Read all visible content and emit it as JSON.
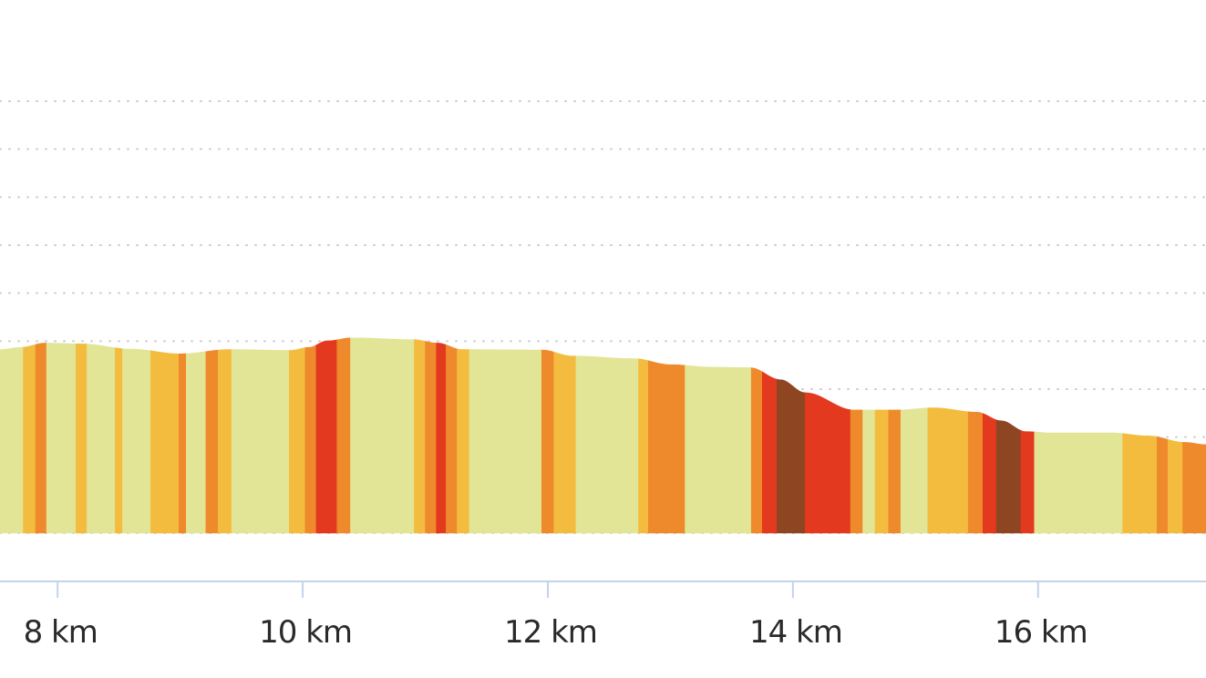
{
  "chart_data": {
    "type": "area",
    "title": "",
    "xlabel": "",
    "ylabel": "",
    "x_unit": "km",
    "xlim": [
      7.53,
      17.37
    ],
    "ylim": [
      0,
      100
    ],
    "grid": true,
    "x_ticks": [
      {
        "value": 8,
        "label": "8 km"
      },
      {
        "value": 10,
        "label": "10 km"
      },
      {
        "value": 12,
        "label": "12 km"
      },
      {
        "value": 14,
        "label": "14 km"
      },
      {
        "value": 16,
        "label": "16 km"
      }
    ],
    "grade_colors": {
      "flat": "#e2e596",
      "gentle": "#f3bc3f",
      "moderate": "#ef8a2c",
      "steep": "#e3391e",
      "very_steep": "#8e4522"
    },
    "profile": [
      {
        "x": 7.53,
        "y": 42.5
      },
      {
        "x": 7.7,
        "y": 43.0
      },
      {
        "x": 7.9,
        "y": 44.0
      },
      {
        "x": 8.2,
        "y": 43.8
      },
      {
        "x": 8.6,
        "y": 42.6
      },
      {
        "x": 9.0,
        "y": 41.5
      },
      {
        "x": 9.4,
        "y": 42.5
      },
      {
        "x": 9.9,
        "y": 42.3
      },
      {
        "x": 10.05,
        "y": 43.0
      },
      {
        "x": 10.2,
        "y": 44.5
      },
      {
        "x": 10.4,
        "y": 45.2
      },
      {
        "x": 10.9,
        "y": 44.8
      },
      {
        "x": 11.1,
        "y": 44.0
      },
      {
        "x": 11.3,
        "y": 42.5
      },
      {
        "x": 11.95,
        "y": 42.4
      },
      {
        "x": 12.2,
        "y": 41.0
      },
      {
        "x": 12.7,
        "y": 40.4
      },
      {
        "x": 13.0,
        "y": 39.0
      },
      {
        "x": 13.35,
        "y": 38.4
      },
      {
        "x": 13.65,
        "y": 38.3
      },
      {
        "x": 13.9,
        "y": 35.5
      },
      {
        "x": 14.1,
        "y": 32.5
      },
      {
        "x": 14.5,
        "y": 28.5
      },
      {
        "x": 14.85,
        "y": 28.5
      },
      {
        "x": 15.15,
        "y": 29.0
      },
      {
        "x": 15.5,
        "y": 28.0
      },
      {
        "x": 15.7,
        "y": 26.0
      },
      {
        "x": 15.9,
        "y": 23.5
      },
      {
        "x": 16.1,
        "y": 23.2
      },
      {
        "x": 16.6,
        "y": 23.2
      },
      {
        "x": 16.9,
        "y": 22.5
      },
      {
        "x": 17.2,
        "y": 21.0
      },
      {
        "x": 17.37,
        "y": 20.5
      }
    ],
    "segments": [
      {
        "x0": 7.53,
        "x1": 7.72,
        "grade": "flat"
      },
      {
        "x0": 7.72,
        "x1": 7.82,
        "grade": "gentle"
      },
      {
        "x0": 7.82,
        "x1": 7.91,
        "grade": "moderate"
      },
      {
        "x0": 7.91,
        "x1": 8.15,
        "grade": "flat"
      },
      {
        "x0": 8.15,
        "x1": 8.24,
        "grade": "gentle"
      },
      {
        "x0": 8.24,
        "x1": 8.47,
        "grade": "flat"
      },
      {
        "x0": 8.47,
        "x1": 8.53,
        "grade": "gentle"
      },
      {
        "x0": 8.53,
        "x1": 8.76,
        "grade": "flat"
      },
      {
        "x0": 8.76,
        "x1": 8.99,
        "grade": "gentle"
      },
      {
        "x0": 8.99,
        "x1": 9.05,
        "grade": "moderate"
      },
      {
        "x0": 9.05,
        "x1": 9.21,
        "grade": "flat"
      },
      {
        "x0": 9.21,
        "x1": 9.31,
        "grade": "moderate"
      },
      {
        "x0": 9.31,
        "x1": 9.42,
        "grade": "gentle"
      },
      {
        "x0": 9.42,
        "x1": 9.89,
        "grade": "flat"
      },
      {
        "x0": 9.89,
        "x1": 10.02,
        "grade": "gentle"
      },
      {
        "x0": 10.02,
        "x1": 10.11,
        "grade": "moderate"
      },
      {
        "x0": 10.11,
        "x1": 10.28,
        "grade": "steep"
      },
      {
        "x0": 10.28,
        "x1": 10.39,
        "grade": "moderate"
      },
      {
        "x0": 10.39,
        "x1": 10.91,
        "grade": "flat"
      },
      {
        "x0": 10.91,
        "x1": 11.0,
        "grade": "gentle"
      },
      {
        "x0": 11.0,
        "x1": 11.09,
        "grade": "moderate"
      },
      {
        "x0": 11.09,
        "x1": 11.17,
        "grade": "steep"
      },
      {
        "x0": 11.17,
        "x1": 11.26,
        "grade": "moderate"
      },
      {
        "x0": 11.26,
        "x1": 11.36,
        "grade": "gentle"
      },
      {
        "x0": 11.36,
        "x1": 11.95,
        "grade": "flat"
      },
      {
        "x0": 11.95,
        "x1": 12.05,
        "grade": "moderate"
      },
      {
        "x0": 12.05,
        "x1": 12.23,
        "grade": "gentle"
      },
      {
        "x0": 12.23,
        "x1": 12.74,
        "grade": "flat"
      },
      {
        "x0": 12.74,
        "x1": 12.82,
        "grade": "gentle"
      },
      {
        "x0": 12.82,
        "x1": 13.12,
        "grade": "moderate"
      },
      {
        "x0": 13.12,
        "x1": 13.66,
        "grade": "flat"
      },
      {
        "x0": 13.66,
        "x1": 13.75,
        "grade": "moderate"
      },
      {
        "x0": 13.75,
        "x1": 13.87,
        "grade": "steep"
      },
      {
        "x0": 13.87,
        "x1": 14.1,
        "grade": "very_steep"
      },
      {
        "x0": 14.1,
        "x1": 14.47,
        "grade": "steep"
      },
      {
        "x0": 14.47,
        "x1": 14.57,
        "grade": "moderate"
      },
      {
        "x0": 14.57,
        "x1": 14.67,
        "grade": "flat"
      },
      {
        "x0": 14.67,
        "x1": 14.78,
        "grade": "gentle"
      },
      {
        "x0": 14.78,
        "x1": 14.88,
        "grade": "moderate"
      },
      {
        "x0": 14.88,
        "x1": 15.1,
        "grade": "flat"
      },
      {
        "x0": 15.1,
        "x1": 15.43,
        "grade": "gentle"
      },
      {
        "x0": 15.43,
        "x1": 15.55,
        "grade": "moderate"
      },
      {
        "x0": 15.55,
        "x1": 15.66,
        "grade": "steep"
      },
      {
        "x0": 15.66,
        "x1": 15.86,
        "grade": "very_steep"
      },
      {
        "x0": 15.86,
        "x1": 15.97,
        "grade": "steep"
      },
      {
        "x0": 15.97,
        "x1": 16.69,
        "grade": "flat"
      },
      {
        "x0": 16.69,
        "x1": 16.97,
        "grade": "gentle"
      },
      {
        "x0": 16.97,
        "x1": 17.06,
        "grade": "moderate"
      },
      {
        "x0": 17.06,
        "x1": 17.18,
        "grade": "gentle"
      },
      {
        "x0": 17.18,
        "x1": 17.37,
        "grade": "moderate"
      }
    ]
  }
}
